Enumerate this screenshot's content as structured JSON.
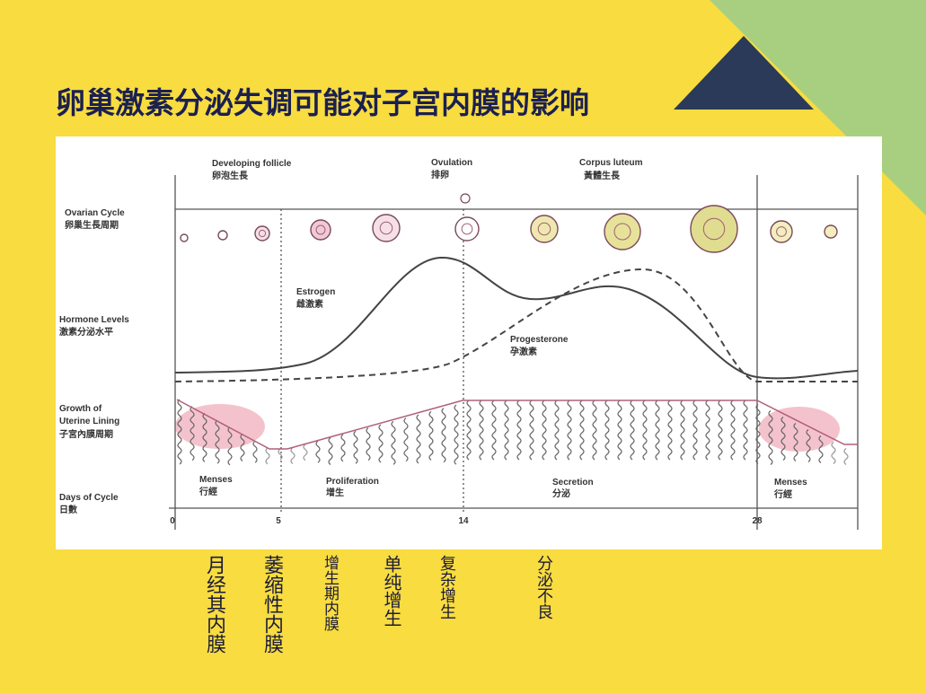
{
  "title": "卵巢激素分泌失调可能对子宫内膜的影响",
  "diagram": {
    "stages": [
      {
        "en": "Developing follicle",
        "zh": "卵泡生長"
      },
      {
        "en": "Ovulation",
        "zh": "排卵"
      },
      {
        "en": "Corpus luteum",
        "zh": "黃體生長"
      }
    ],
    "rows": [
      {
        "en": [
          "Ovarian Cycle"
        ],
        "zh": "卵巢生長周期"
      },
      {
        "en": [
          "Hormone Levels"
        ],
        "zh": "激素分泌水平"
      },
      {
        "en": [
          "Growth of",
          "Uterine Lining"
        ],
        "zh": "子宮內膜周期"
      },
      {
        "en": [
          "Days of Cycle"
        ],
        "zh": "日數"
      }
    ],
    "hormones": [
      {
        "en": "Estrogen",
        "zh": "雌激素"
      },
      {
        "en": "Progesterone",
        "zh": "孕激素"
      }
    ],
    "phases": [
      {
        "en": "Menses",
        "zh": "行經"
      },
      {
        "en": "Proliferation",
        "zh": "增生"
      },
      {
        "en": "Secretion",
        "zh": "分泌"
      },
      {
        "en": "Menses",
        "zh": "行經"
      }
    ],
    "days": [
      0,
      5,
      14,
      28
    ]
  },
  "annotations": [
    "月经其内膜",
    "萎缩性内膜",
    "增生期内膜",
    "单纯增生",
    "复杂增生",
    "分泌不良"
  ]
}
